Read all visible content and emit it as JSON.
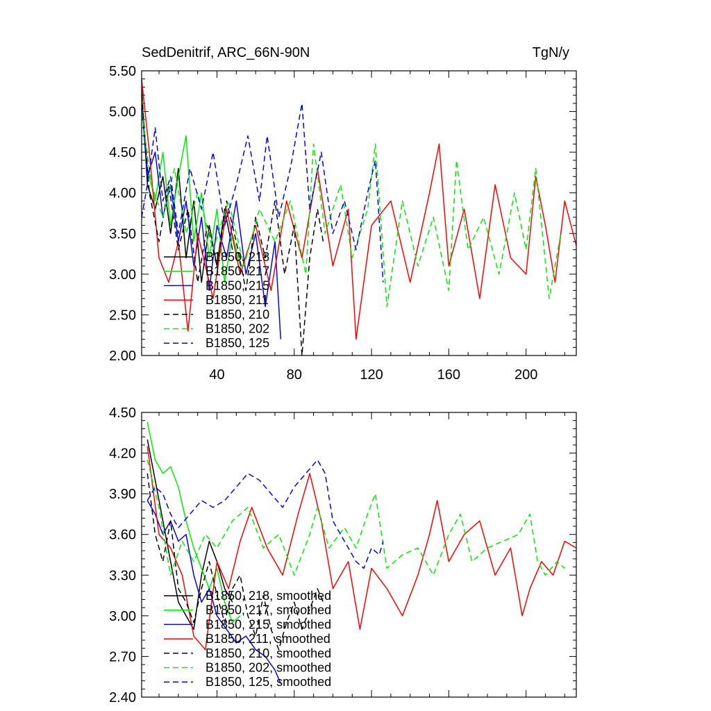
{
  "chart_data": [
    {
      "type": "line",
      "title": "SedDenitrif, ARC_66N-90N",
      "units": "TgN/y",
      "xlabel": "",
      "ylabel": "",
      "xlim": [
        1,
        226
      ],
      "ylim": [
        2.0,
        5.5
      ],
      "x_ticks": [
        40,
        80,
        120,
        160,
        200
      ],
      "x_tick_labels": [
        "40",
        "80",
        "120",
        "160",
        "200"
      ],
      "y_ticks": [
        2.0,
        2.5,
        3.0,
        3.5,
        4.0,
        4.5,
        5.0,
        5.5
      ],
      "y_tick_labels": [
        "2.00",
        "2.50",
        "3.00",
        "3.50",
        "4.00",
        "4.50",
        "5.00",
        "5.50"
      ],
      "legend_position": "lower-left",
      "series": [
        {
          "name": "B1850, 218",
          "color": "#000000",
          "dash": "solid",
          "x": [
            1,
            4,
            8,
            12,
            16,
            20,
            24,
            28,
            32,
            36,
            40,
            44,
            48
          ],
          "y": [
            5.3,
            4.1,
            3.8,
            4.2,
            3.5,
            4.3,
            3.2,
            3.9,
            2.9,
            3.6,
            3.1,
            3.8,
            3.3
          ]
        },
        {
          "name": "B1850, 217",
          "color": "#00ee00",
          "dash": "solid",
          "x": [
            1,
            4,
            8,
            12,
            16,
            20,
            24,
            28,
            32,
            36,
            40,
            44,
            48,
            52
          ],
          "y": [
            5.2,
            4.3,
            3.9,
            4.5,
            3.6,
            4.2,
            4.7,
            3.4,
            4.0,
            3.2,
            3.8,
            2.9,
            3.5,
            3.1
          ]
        },
        {
          "name": "B1850, 215",
          "color": "#0000ff",
          "dash": "solid",
          "x": [
            1,
            4,
            8,
            12,
            16,
            20,
            24,
            28,
            32,
            36,
            40,
            45,
            50,
            55,
            60,
            65,
            70,
            73
          ],
          "y": [
            5.1,
            4.2,
            4.5,
            3.7,
            4.1,
            3.4,
            3.9,
            3.1,
            3.7,
            2.8,
            3.6,
            3.2,
            3.9,
            3.0,
            3.5,
            2.6,
            3.4,
            2.2
          ]
        },
        {
          "name": "B1850, 211",
          "color": "#ff0000",
          "dash": "solid",
          "x": [
            1,
            5,
            10,
            15,
            20,
            25,
            30,
            38,
            45,
            52,
            60,
            68,
            76,
            84,
            92,
            100,
            108,
            112,
            120,
            130,
            140,
            150,
            155,
            160,
            168,
            176,
            184,
            192,
            200,
            205,
            210,
            215,
            220,
            226
          ],
          "y": [
            5.4,
            4.5,
            3.2,
            2.9,
            3.4,
            2.3,
            3.5,
            2.7,
            3.8,
            3.0,
            3.6,
            2.8,
            3.9,
            3.2,
            4.3,
            3.1,
            3.8,
            2.2,
            3.6,
            3.9,
            2.9,
            4.0,
            4.6,
            3.1,
            3.8,
            2.7,
            4.1,
            3.2,
            3.0,
            4.2,
            3.6,
            2.9,
            3.9,
            3.35
          ]
        },
        {
          "name": "B1850, 210",
          "color": "#000000",
          "dash": "dashed",
          "x": [
            1,
            5,
            10,
            15,
            20,
            25,
            30,
            35,
            40,
            45,
            50,
            55,
            60,
            65,
            70,
            75,
            80,
            84,
            88,
            92,
            95
          ],
          "y": [
            5.2,
            4.0,
            3.4,
            4.1,
            3.3,
            3.8,
            2.9,
            3.6,
            3.1,
            3.9,
            3.4,
            2.8,
            3.7,
            3.2,
            3.9,
            3.0,
            3.6,
            2.0,
            3.2,
            3.8,
            3.4
          ]
        },
        {
          "name": "B1850, 202",
          "color": "#00ee00",
          "dash": "dashed",
          "x": [
            1,
            6,
            12,
            18,
            24,
            30,
            38,
            46,
            54,
            62,
            70,
            78,
            86,
            90,
            96,
            104,
            110,
            118,
            122,
            128,
            136,
            144,
            152,
            160,
            164,
            170,
            178,
            186,
            194,
            200,
            205,
            212,
            218
          ],
          "y": [
            5.0,
            4.1,
            3.7,
            4.3,
            3.5,
            4.0,
            3.3,
            3.9,
            3.1,
            3.8,
            3.4,
            3.9,
            3.0,
            4.6,
            3.5,
            4.1,
            3.2,
            3.8,
            4.6,
            2.6,
            3.9,
            3.1,
            3.7,
            2.8,
            4.4,
            3.3,
            3.7,
            3.0,
            4.0,
            3.3,
            4.3,
            2.7,
            3.5
          ]
        },
        {
          "name": "B1850, 125",
          "color": "#0000ff",
          "dash": "dashed",
          "x": [
            1,
            4,
            8,
            12,
            16,
            20,
            26,
            32,
            38,
            44,
            50,
            56,
            62,
            66,
            72,
            78,
            84,
            88,
            94,
            100,
            106,
            112,
            118,
            122,
            126
          ],
          "y": [
            3.7,
            4.1,
            4.8,
            3.9,
            4.2,
            3.5,
            4.3,
            3.8,
            4.5,
            3.6,
            4.1,
            4.7,
            3.9,
            4.7,
            3.7,
            4.3,
            5.1,
            3.8,
            4.5,
            3.5,
            3.9,
            3.3,
            4.0,
            4.4,
            2.9
          ]
        }
      ]
    },
    {
      "type": "line",
      "title": "",
      "xlabel": "",
      "ylabel": "",
      "xlim": [
        1,
        226
      ],
      "ylim": [
        2.4,
        4.5
      ],
      "x_ticks": [
        40,
        80,
        120,
        160,
        200
      ],
      "y_ticks": [
        2.4,
        2.7,
        3.0,
        3.3,
        3.6,
        3.9,
        4.2,
        4.5
      ],
      "y_tick_labels": [
        "2.40",
        "2.70",
        "3.00",
        "3.30",
        "3.60",
        "3.90",
        "4.20",
        "4.50"
      ],
      "legend_position": "lower-left",
      "series": [
        {
          "name": "B1850, 218, smoothed",
          "color": "#000000",
          "dash": "solid",
          "x": [
            4,
            8,
            12,
            16,
            20,
            24,
            28,
            32,
            36,
            40,
            44,
            48
          ],
          "y": [
            4.3,
            4.0,
            3.7,
            3.4,
            3.1,
            3.0,
            2.9,
            3.3,
            3.55,
            3.4,
            3.2,
            3.1
          ]
        },
        {
          "name": "B1850, 217, smoothed",
          "color": "#00ee00",
          "dash": "solid",
          "x": [
            4,
            8,
            12,
            16,
            20,
            24,
            28,
            32,
            36,
            40,
            44,
            48,
            52
          ],
          "y": [
            4.43,
            4.15,
            4.05,
            4.1,
            3.95,
            3.7,
            3.5,
            3.35,
            3.2,
            3.35,
            3.1,
            2.95,
            3.0
          ]
        },
        {
          "name": "B1850, 215, smoothed",
          "color": "#0000ff",
          "dash": "solid",
          "x": [
            4,
            8,
            12,
            16,
            20,
            24,
            28,
            32,
            36,
            40,
            45,
            50,
            55,
            60,
            65,
            70,
            73
          ],
          "y": [
            3.85,
            3.75,
            3.6,
            3.7,
            3.55,
            3.6,
            3.3,
            3.1,
            3.2,
            3.0,
            2.9,
            2.8,
            2.85,
            2.75,
            2.7,
            2.6,
            2.5
          ]
        },
        {
          "name": "B1850, 211, smoothed",
          "color": "#ff0000",
          "dash": "solid",
          "x": [
            4,
            10,
            16,
            22,
            28,
            34,
            40,
            46,
            52,
            58,
            66,
            74,
            82,
            88,
            94,
            100,
            108,
            114,
            120,
            128,
            136,
            144,
            150,
            154,
            160,
            168,
            176,
            184,
            192,
            198,
            202,
            208,
            214,
            220,
            226
          ],
          "y": [
            4.25,
            3.6,
            3.5,
            3.3,
            2.85,
            2.75,
            3.4,
            3.2,
            3.55,
            3.8,
            3.5,
            3.3,
            3.75,
            4.05,
            3.7,
            3.2,
            3.4,
            2.9,
            3.35,
            3.2,
            3.0,
            3.3,
            3.6,
            3.85,
            3.4,
            3.6,
            3.7,
            3.3,
            3.5,
            3.0,
            3.2,
            3.4,
            3.3,
            3.55,
            3.5
          ]
        },
        {
          "name": "B1850, 210, smoothed",
          "color": "#000000",
          "dash": "dashed",
          "x": [
            4,
            8,
            12,
            16,
            20,
            24,
            28,
            32,
            36,
            40,
            44,
            48,
            52,
            56,
            60,
            64,
            68,
            72,
            76,
            80,
            84,
            88,
            92,
            95
          ],
          "y": [
            4.05,
            3.6,
            3.4,
            3.7,
            3.2,
            3.1,
            2.95,
            3.2,
            3.4,
            3.15,
            2.95,
            3.2,
            3.3,
            3.0,
            2.85,
            3.15,
            2.9,
            2.75,
            2.95,
            3.1,
            2.9,
            3.05,
            3.2,
            3.1
          ]
        },
        {
          "name": "B1850, 202, smoothed",
          "color": "#00ee00",
          "dash": "dashed",
          "x": [
            4,
            10,
            16,
            22,
            28,
            34,
            40,
            48,
            56,
            64,
            72,
            80,
            88,
            92,
            98,
            106,
            112,
            118,
            122,
            128,
            136,
            144,
            152,
            160,
            166,
            172,
            180,
            188,
            196,
            202,
            206,
            210,
            216,
            220
          ],
          "y": [
            4.15,
            3.8,
            3.3,
            3.55,
            3.4,
            3.6,
            3.5,
            3.7,
            3.8,
            3.5,
            3.6,
            3.3,
            3.6,
            3.8,
            3.5,
            3.65,
            3.5,
            3.75,
            3.9,
            3.35,
            3.45,
            3.5,
            3.3,
            3.6,
            3.75,
            3.4,
            3.5,
            3.55,
            3.6,
            3.75,
            3.4,
            3.3,
            3.4,
            3.35
          ]
        },
        {
          "name": "B1850, 125, smoothed",
          "color": "#0000ff",
          "dash": "dashed",
          "x": [
            4,
            8,
            12,
            16,
            20,
            26,
            32,
            38,
            44,
            50,
            56,
            62,
            68,
            74,
            80,
            86,
            92,
            96,
            100,
            104,
            108,
            112,
            116,
            120,
            124,
            126
          ],
          "y": [
            3.85,
            3.95,
            3.9,
            3.75,
            3.65,
            3.75,
            3.85,
            3.8,
            3.85,
            3.95,
            4.05,
            4.0,
            3.9,
            3.8,
            3.95,
            4.05,
            4.15,
            4.05,
            3.7,
            3.6,
            3.5,
            3.4,
            3.35,
            3.5,
            3.45,
            3.55
          ]
        }
      ]
    }
  ]
}
